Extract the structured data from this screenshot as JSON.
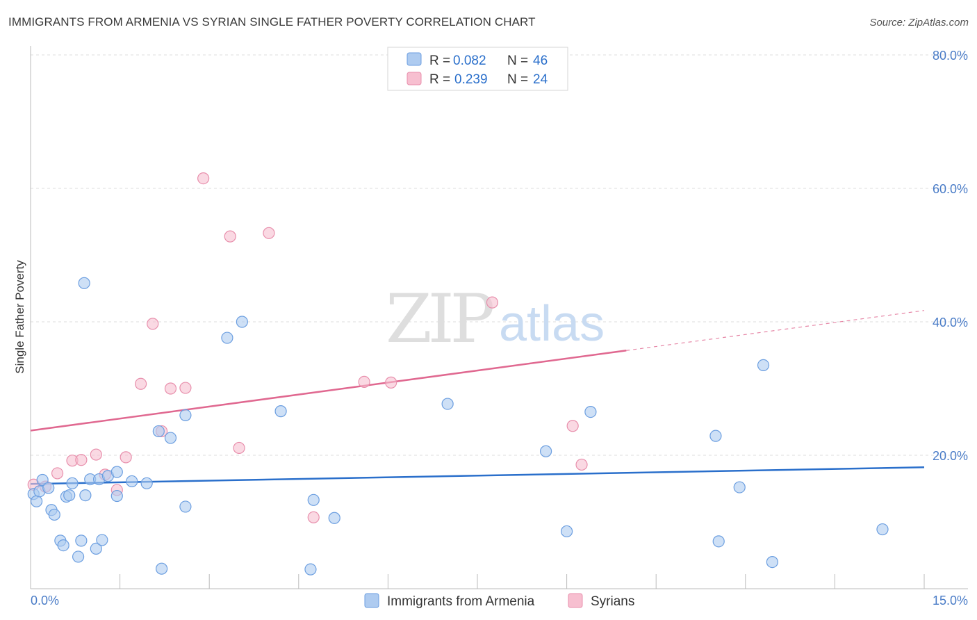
{
  "header": {
    "title": "IMMIGRANTS FROM ARMENIA VS SYRIAN SINGLE FATHER POVERTY CORRELATION CHART",
    "source": "Source: ZipAtlas.com"
  },
  "watermark": {
    "zip": "ZIP",
    "atlas": "atlas"
  },
  "legend_top": {
    "rows": [
      {
        "r_label": "R = ",
        "r_value": "0.082",
        "n_label": "N = ",
        "n_value": "46"
      },
      {
        "r_label": "R = ",
        "r_value": "0.239",
        "n_label": "N = ",
        "n_value": "24"
      }
    ]
  },
  "legend_bottom": {
    "items": [
      {
        "label": "Immigrants from Armenia"
      },
      {
        "label": "Syrians"
      }
    ]
  },
  "colors": {
    "blue_fill": "#aecbf0",
    "blue_stroke": "#6b9ee0",
    "blue_line": "#2a6fcb",
    "pink_fill": "#f7bfd0",
    "pink_stroke": "#e88fac",
    "pink_line": "#e06890",
    "tick_text": "#4a7cc7",
    "grid": "#dddddd"
  },
  "chart_data": {
    "type": "scatter",
    "xlabel": "",
    "ylabel": "Single Father Poverty",
    "xlim": [
      0,
      15
    ],
    "ylim": [
      0,
      80
    ],
    "x_tick_labels": [
      "0.0%",
      "15.0%"
    ],
    "y_ticks": [
      20,
      40,
      60,
      80
    ],
    "y_tick_labels": [
      "20.0%",
      "40.0%",
      "60.0%",
      "80.0%"
    ],
    "grid": true,
    "legend_position": "top-center",
    "series": [
      {
        "name": "Immigrants from Armenia",
        "r": 0.082,
        "n": 46,
        "trend": {
          "x": [
            0,
            15
          ],
          "y": [
            15.7,
            18.2
          ]
        },
        "points": [
          [
            0.05,
            14.2
          ],
          [
            0.1,
            13.1
          ],
          [
            0.15,
            14.6
          ],
          [
            0.2,
            16.3
          ],
          [
            0.3,
            15.1
          ],
          [
            0.35,
            11.8
          ],
          [
            0.4,
            11.1
          ],
          [
            0.5,
            7.2
          ],
          [
            0.55,
            6.5
          ],
          [
            0.6,
            13.8
          ],
          [
            0.65,
            14.0
          ],
          [
            0.7,
            15.8
          ],
          [
            0.8,
            4.8
          ],
          [
            0.85,
            7.2
          ],
          [
            0.9,
            45.8
          ],
          [
            0.92,
            14.0
          ],
          [
            1.0,
            16.4
          ],
          [
            1.1,
            6.0
          ],
          [
            1.15,
            16.4
          ],
          [
            1.2,
            7.3
          ],
          [
            1.3,
            16.9
          ],
          [
            1.45,
            17.5
          ],
          [
            1.45,
            13.9
          ],
          [
            1.7,
            16.1
          ],
          [
            1.95,
            15.8
          ],
          [
            2.15,
            23.6
          ],
          [
            2.2,
            3.0
          ],
          [
            2.35,
            22.6
          ],
          [
            2.6,
            26.0
          ],
          [
            2.6,
            12.3
          ],
          [
            3.3,
            37.6
          ],
          [
            3.55,
            40.0
          ],
          [
            4.2,
            26.6
          ],
          [
            4.7,
            2.9
          ],
          [
            4.75,
            13.3
          ],
          [
            5.1,
            10.6
          ],
          [
            7.0,
            27.7
          ],
          [
            8.65,
            20.6
          ],
          [
            9.0,
            8.6
          ],
          [
            9.4,
            26.5
          ],
          [
            11.5,
            22.9
          ],
          [
            11.55,
            7.1
          ],
          [
            11.9,
            15.2
          ],
          [
            12.3,
            33.5
          ],
          [
            12.45,
            4.0
          ],
          [
            14.3,
            8.9
          ]
        ]
      },
      {
        "name": "Syrians",
        "r": 0.239,
        "n": 24,
        "trend_solid": {
          "x": [
            0,
            10.0
          ],
          "y": [
            23.7,
            35.7
          ]
        },
        "trend_dashed": {
          "x": [
            10.0,
            15.0
          ],
          "y": [
            35.7,
            41.7
          ]
        },
        "points": [
          [
            0.05,
            15.6
          ],
          [
            0.25,
            15.3
          ],
          [
            0.45,
            17.3
          ],
          [
            0.7,
            19.2
          ],
          [
            0.85,
            19.3
          ],
          [
            1.1,
            20.1
          ],
          [
            1.25,
            17.1
          ],
          [
            1.45,
            14.8
          ],
          [
            1.6,
            19.7
          ],
          [
            1.85,
            30.7
          ],
          [
            2.05,
            39.7
          ],
          [
            2.2,
            23.6
          ],
          [
            2.35,
            30.0
          ],
          [
            2.6,
            30.1
          ],
          [
            2.9,
            61.5
          ],
          [
            3.35,
            52.8
          ],
          [
            3.5,
            21.1
          ],
          [
            4.0,
            53.3
          ],
          [
            4.75,
            10.7
          ],
          [
            5.6,
            31.0
          ],
          [
            6.05,
            30.9
          ],
          [
            7.75,
            42.9
          ],
          [
            9.1,
            24.4
          ],
          [
            9.25,
            18.6
          ]
        ]
      }
    ]
  }
}
